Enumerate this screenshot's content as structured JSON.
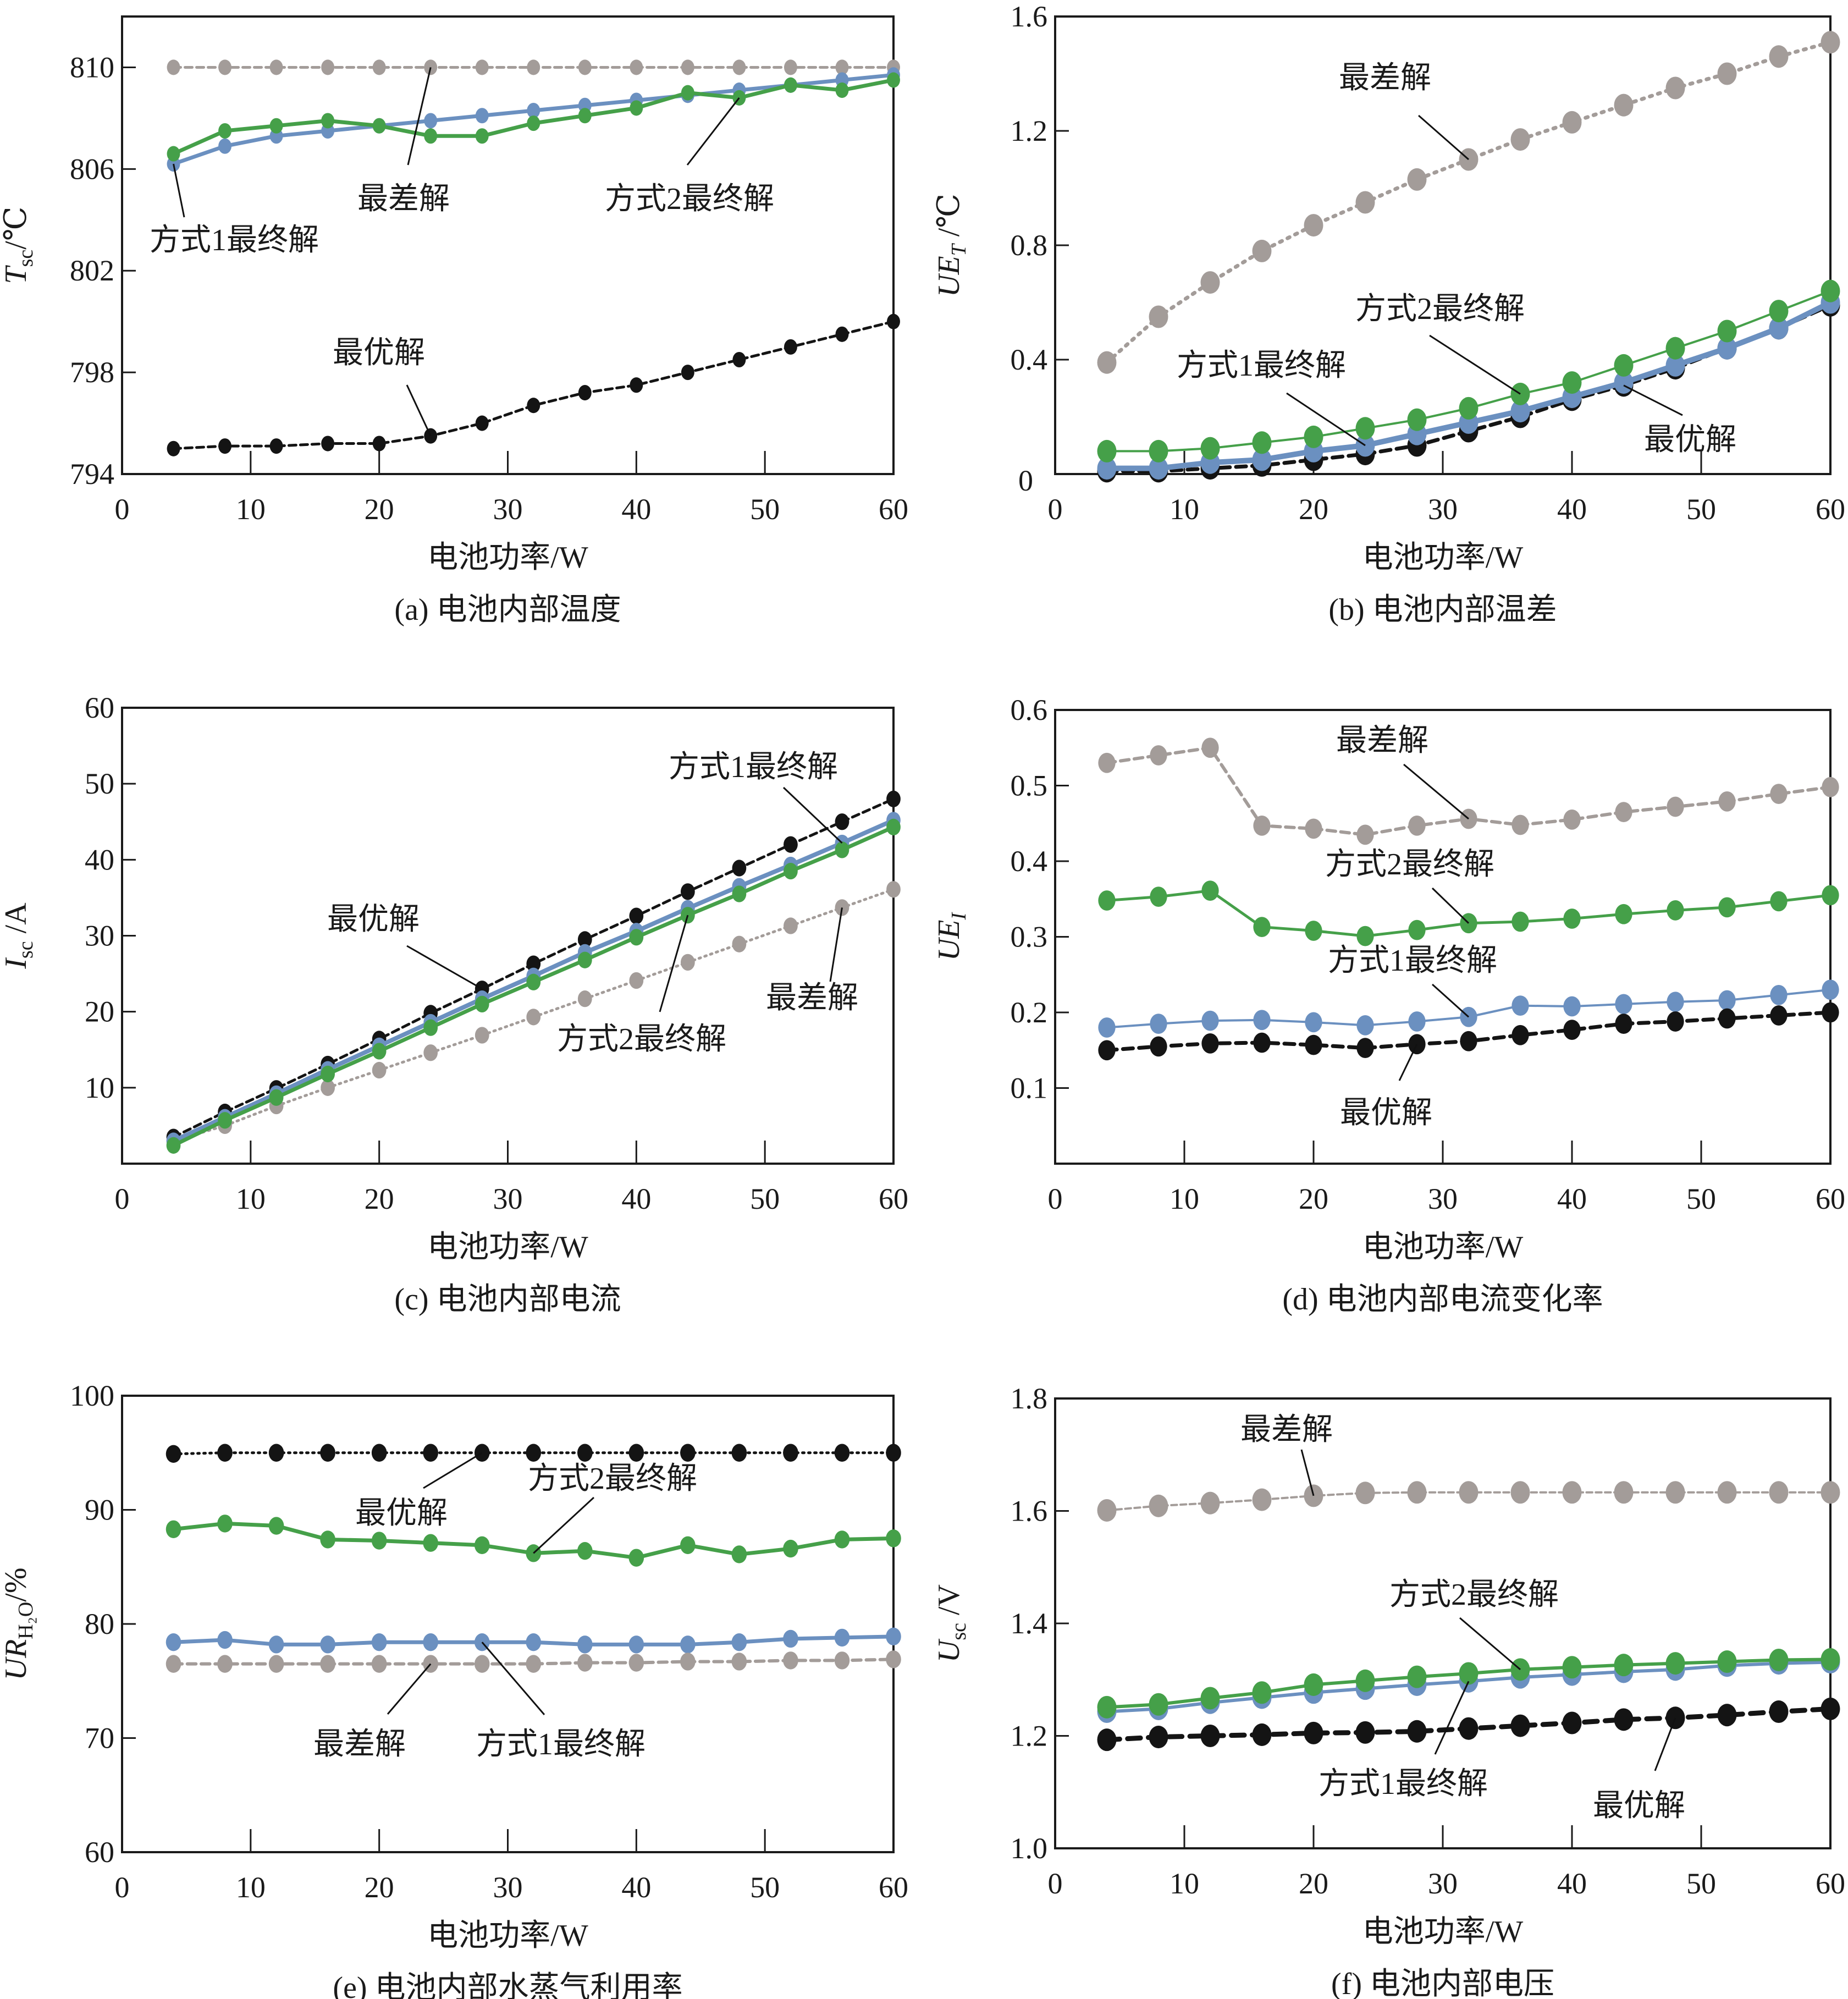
{
  "figure": {
    "x_axis_title": "电池功率/W",
    "series_names": {
      "best": "最优解",
      "worst": "最差解",
      "m1": "方式1最终解",
      "m2": "方式2最终解"
    },
    "colors": {
      "best": "#141414",
      "worst": "#a39c99",
      "m1": "#6b90c0",
      "m2": "#45a049",
      "axis": "#1a1a1a"
    }
  },
  "chart_data": [
    {
      "id": "a",
      "type": "line",
      "caption": "(a) 电池内部温度",
      "title": "",
      "xlabel": "电池功率/W",
      "ylabel": "T_sc/℃",
      "ylabel_main": "T",
      "ylabel_sub": "sc",
      "ylabel_unit": "/℃",
      "xlim": [
        0,
        60
      ],
      "ylim": [
        794,
        812
      ],
      "xticks": [
        0,
        10,
        20,
        30,
        40,
        50,
        60
      ],
      "yticks": [
        794,
        798,
        802,
        806,
        810
      ],
      "grid": false,
      "x": [
        4,
        8,
        12,
        16,
        20,
        24,
        28,
        32,
        36,
        40,
        44,
        48,
        52,
        56,
        60
      ],
      "series": [
        {
          "key": "worst",
          "name": "最差解",
          "style": "dashed",
          "values": [
            810,
            810,
            810,
            810,
            810,
            810,
            810,
            810,
            810,
            810,
            810,
            810,
            810,
            810,
            810
          ]
        },
        {
          "key": "m1",
          "name": "方式1最终解",
          "style": "solid",
          "values": [
            806.2,
            806.9,
            807.3,
            807.5,
            807.7,
            807.9,
            808.1,
            808.3,
            808.5,
            808.7,
            808.9,
            809.1,
            809.3,
            809.5,
            809.7
          ]
        },
        {
          "key": "m2",
          "name": "方式2最终解",
          "style": "solid",
          "values": [
            806.6,
            807.5,
            807.7,
            807.9,
            807.7,
            807.3,
            807.3,
            807.8,
            808.1,
            808.4,
            809.0,
            808.8,
            809.3,
            809.1,
            809.5
          ]
        },
        {
          "key": "best",
          "name": "最优解",
          "style": "dashed",
          "values": [
            795.0,
            795.1,
            795.1,
            795.2,
            795.2,
            795.5,
            796.0,
            796.7,
            797.2,
            797.5,
            798.0,
            798.5,
            799.0,
            799.5,
            800.0
          ]
        }
      ],
      "annotations": [
        {
          "key": "m1",
          "text": "方式1最终解"
        },
        {
          "key": "worst",
          "text": "最差解"
        },
        {
          "key": "m2",
          "text": "方式2最终解"
        },
        {
          "key": "best",
          "text": "最优解"
        }
      ]
    },
    {
      "id": "b",
      "type": "line",
      "caption": "(b) 电池内部温差",
      "title": "",
      "xlabel": "电池功率/W",
      "ylabel": "UE_T /℃",
      "ylabel_main": "UE",
      "ylabel_sub": "T",
      "ylabel_unit": " /℃",
      "xlim": [
        0,
        60
      ],
      "ylim": [
        0,
        1.6
      ],
      "xticks": [
        0,
        10,
        20,
        30,
        40,
        50,
        60
      ],
      "yticks": [
        0,
        0.4,
        0.8,
        1.2,
        1.6
      ],
      "ytick_labels": [
        "0",
        "0.4",
        "0.8",
        "1.2",
        "1.6"
      ],
      "grid": false,
      "x": [
        4,
        8,
        12,
        16,
        20,
        24,
        28,
        32,
        36,
        40,
        44,
        48,
        52,
        56,
        60
      ],
      "series": [
        {
          "key": "worst",
          "name": "最差解",
          "style": "dotted",
          "values": [
            0.39,
            0.55,
            0.67,
            0.78,
            0.87,
            0.95,
            1.03,
            1.1,
            1.17,
            1.23,
            1.29,
            1.35,
            1.4,
            1.46,
            1.51
          ]
        },
        {
          "key": "best",
          "name": "最优解",
          "style": "dashed",
          "values": [
            0.01,
            0.01,
            0.02,
            0.03,
            0.05,
            0.07,
            0.1,
            0.15,
            0.2,
            0.26,
            0.31,
            0.37,
            0.44,
            0.51,
            0.59
          ]
        },
        {
          "key": "m1",
          "name": "方式1最终解",
          "style": "solid",
          "values": [
            0.02,
            0.02,
            0.04,
            0.05,
            0.08,
            0.1,
            0.14,
            0.18,
            0.22,
            0.27,
            0.32,
            0.38,
            0.44,
            0.51,
            0.6
          ]
        },
        {
          "key": "m2",
          "name": "方式2最终解",
          "style": "solid",
          "values": [
            0.08,
            0.08,
            0.09,
            0.11,
            0.13,
            0.16,
            0.19,
            0.23,
            0.28,
            0.32,
            0.38,
            0.44,
            0.5,
            0.57,
            0.64
          ]
        }
      ],
      "annotations": [
        {
          "key": "worst",
          "text": "最差解"
        },
        {
          "key": "m2",
          "text": "方式2最终解"
        },
        {
          "key": "m1",
          "text": "方式1最终解"
        },
        {
          "key": "best",
          "text": "最优解"
        }
      ]
    },
    {
      "id": "c",
      "type": "line",
      "caption": "(c) 电池内部电流",
      "title": "",
      "xlabel": "电池功率/W",
      "ylabel": "I_sc /A",
      "ylabel_main": "I",
      "ylabel_sub": "sc",
      "ylabel_unit": " /A",
      "xlim": [
        0,
        60
      ],
      "ylim": [
        0,
        60
      ],
      "xticks": [
        0,
        10,
        20,
        30,
        40,
        50,
        60
      ],
      "yticks": [
        10,
        20,
        30,
        40,
        50,
        60
      ],
      "grid": false,
      "x": [
        4,
        8,
        12,
        16,
        20,
        24,
        28,
        32,
        36,
        40,
        44,
        48,
        52,
        56,
        60
      ],
      "series": [
        {
          "key": "worst",
          "name": "最差解",
          "style": "dotted",
          "values": [
            3.0,
            5.0,
            7.6,
            10.0,
            12.3,
            14.6,
            16.9,
            19.3,
            21.7,
            24.1,
            26.5,
            28.9,
            31.3,
            33.7,
            36.1
          ]
        },
        {
          "key": "best",
          "name": "最优解",
          "style": "dashed",
          "values": [
            3.5,
            6.8,
            9.9,
            13.1,
            16.4,
            19.8,
            23.0,
            26.3,
            29.5,
            32.6,
            35.8,
            38.9,
            42.0,
            45.0,
            48.0
          ]
        },
        {
          "key": "m1",
          "name": "方式1最终解",
          "style": "solid",
          "values": [
            3.0,
            6.1,
            9.2,
            12.4,
            15.5,
            18.6,
            21.7,
            24.7,
            27.8,
            30.6,
            33.6,
            36.5,
            39.3,
            42.2,
            45.2
          ]
        },
        {
          "key": "m2",
          "name": "方式2最终解",
          "style": "solid",
          "values": [
            2.4,
            5.7,
            8.7,
            11.8,
            14.8,
            17.9,
            21.0,
            23.9,
            26.8,
            29.8,
            32.7,
            35.5,
            38.5,
            41.3,
            44.3
          ]
        }
      ],
      "annotations": [
        {
          "key": "m1",
          "text": "方式1最终解"
        },
        {
          "key": "best",
          "text": "最优解"
        },
        {
          "key": "worst",
          "text": "最差解"
        },
        {
          "key": "m2",
          "text": "方式2最终解"
        }
      ]
    },
    {
      "id": "d",
      "type": "line",
      "caption": "(d) 电池内部电流变化率",
      "title": "",
      "xlabel": "电池功率/W",
      "ylabel": "UE_I",
      "ylabel_main": "UE",
      "ylabel_sub": "I",
      "ylabel_unit": "",
      "xlim": [
        0,
        60
      ],
      "ylim": [
        0,
        0.6
      ],
      "xticks": [
        0,
        10,
        20,
        30,
        40,
        50,
        60
      ],
      "yticks": [
        0.1,
        0.2,
        0.3,
        0.4,
        0.5,
        0.6
      ],
      "ytick_labels": [
        "0.1",
        "0.2",
        "0.3",
        "0.4",
        "0.5",
        "0.6"
      ],
      "grid": false,
      "x": [
        4,
        8,
        12,
        16,
        20,
        24,
        28,
        32,
        36,
        40,
        44,
        48,
        52,
        56,
        60
      ],
      "series": [
        {
          "key": "worst",
          "name": "最差解",
          "style": "dashed",
          "values": [
            0.53,
            0.54,
            0.55,
            0.447,
            0.443,
            0.435,
            0.447,
            0.456,
            0.448,
            0.455,
            0.465,
            0.472,
            0.479,
            0.489,
            0.498
          ]
        },
        {
          "key": "m2",
          "name": "方式2最终解",
          "style": "solid",
          "values": [
            0.348,
            0.353,
            0.361,
            0.313,
            0.308,
            0.301,
            0.309,
            0.318,
            0.32,
            0.324,
            0.33,
            0.335,
            0.339,
            0.347,
            0.355
          ]
        },
        {
          "key": "m1",
          "name": "方式1最终解",
          "style": "solid",
          "values": [
            0.18,
            0.185,
            0.189,
            0.19,
            0.187,
            0.183,
            0.188,
            0.194,
            0.209,
            0.208,
            0.211,
            0.214,
            0.216,
            0.223,
            0.23
          ]
        },
        {
          "key": "best",
          "name": "最优解",
          "style": "dashed",
          "values": [
            0.15,
            0.155,
            0.159,
            0.16,
            0.157,
            0.153,
            0.158,
            0.162,
            0.17,
            0.177,
            0.185,
            0.188,
            0.192,
            0.196,
            0.2
          ]
        }
      ],
      "annotations": [
        {
          "key": "worst",
          "text": "最差解"
        },
        {
          "key": "m2",
          "text": "方式2最终解"
        },
        {
          "key": "m1",
          "text": "方式1最终解"
        },
        {
          "key": "best",
          "text": "最优解"
        }
      ]
    },
    {
      "id": "e",
      "type": "line",
      "caption": "(e) 电池内部水蒸气利用率",
      "title": "",
      "xlabel": "电池功率/W",
      "ylabel": "UR_H2O/%",
      "ylabel_main": "UR",
      "ylabel_sub": "H₂O",
      "ylabel_unit": "/%",
      "xlim": [
        0,
        60
      ],
      "ylim": [
        60,
        100
      ],
      "xticks": [
        0,
        10,
        20,
        30,
        40,
        50,
        60
      ],
      "yticks": [
        60,
        70,
        80,
        90,
        100
      ],
      "grid": false,
      "x": [
        4,
        8,
        12,
        16,
        20,
        24,
        28,
        32,
        36,
        40,
        44,
        48,
        52,
        56,
        60
      ],
      "series": [
        {
          "key": "best",
          "name": "最优解",
          "style": "dotted",
          "values": [
            94.9,
            95.0,
            95.0,
            95.0,
            95.0,
            95.0,
            95.0,
            95.0,
            95.0,
            95.0,
            95.0,
            95.0,
            95.0,
            95.0,
            95.0
          ]
        },
        {
          "key": "m2",
          "name": "方式2最终解",
          "style": "solid",
          "values": [
            88.3,
            88.8,
            88.6,
            87.4,
            87.3,
            87.1,
            86.9,
            86.2,
            86.4,
            85.8,
            86.9,
            86.1,
            86.6,
            87.4,
            87.5
          ]
        },
        {
          "key": "m1",
          "name": "方式1最终解",
          "style": "solid",
          "values": [
            78.4,
            78.6,
            78.2,
            78.2,
            78.4,
            78.4,
            78.4,
            78.4,
            78.2,
            78.2,
            78.2,
            78.4,
            78.7,
            78.8,
            78.9
          ]
        },
        {
          "key": "worst",
          "name": "最差解",
          "style": "dashed",
          "values": [
            76.5,
            76.5,
            76.5,
            76.5,
            76.5,
            76.5,
            76.5,
            76.5,
            76.6,
            76.6,
            76.7,
            76.7,
            76.8,
            76.8,
            76.9
          ]
        }
      ],
      "annotations": [
        {
          "key": "best",
          "text": "最优解"
        },
        {
          "key": "m2",
          "text": "方式2最终解"
        },
        {
          "key": "worst",
          "text": "最差解"
        },
        {
          "key": "m1",
          "text": "方式1最终解"
        }
      ]
    },
    {
      "id": "f",
      "type": "line",
      "caption": "(f) 电池内部电压",
      "title": "",
      "xlabel": "电池功率/W",
      "ylabel": "U_sc /V",
      "ylabel_main": "U",
      "ylabel_sub": "sc",
      "ylabel_unit": " /V",
      "xlim": [
        0,
        60
      ],
      "ylim": [
        1.0,
        1.8
      ],
      "xticks": [
        0,
        10,
        20,
        30,
        40,
        50,
        60
      ],
      "yticks": [
        1.0,
        1.2,
        1.4,
        1.6,
        1.8
      ],
      "ytick_labels": [
        "1.0",
        "1.2",
        "1.4",
        "1.6",
        "1.8"
      ],
      "grid": false,
      "x": [
        4,
        8,
        12,
        16,
        20,
        24,
        28,
        32,
        36,
        40,
        44,
        48,
        52,
        56,
        60
      ],
      "series": [
        {
          "key": "worst",
          "name": "最差解",
          "style": "dashed",
          "values": [
            1.601,
            1.609,
            1.614,
            1.62,
            1.627,
            1.632,
            1.633,
            1.633,
            1.633,
            1.633,
            1.633,
            1.633,
            1.633,
            1.633,
            1.633
          ]
        },
        {
          "key": "m1",
          "name": "方式1最终解",
          "style": "solid",
          "values": [
            1.243,
            1.248,
            1.259,
            1.268,
            1.277,
            1.284,
            1.291,
            1.297,
            1.304,
            1.309,
            1.314,
            1.318,
            1.325,
            1.329,
            1.331
          ]
        },
        {
          "key": "m2",
          "name": "方式2最终解",
          "style": "solid",
          "values": [
            1.251,
            1.256,
            1.267,
            1.277,
            1.291,
            1.298,
            1.305,
            1.311,
            1.318,
            1.322,
            1.326,
            1.329,
            1.332,
            1.335,
            1.336
          ]
        },
        {
          "key": "best",
          "name": "最优解",
          "style": "dashed",
          "values": [
            1.193,
            1.198,
            1.2,
            1.202,
            1.205,
            1.206,
            1.208,
            1.213,
            1.218,
            1.223,
            1.229,
            1.232,
            1.237,
            1.243,
            1.248
          ]
        }
      ],
      "annotations": [
        {
          "key": "worst",
          "text": "最差解"
        },
        {
          "key": "m2",
          "text": "方式2最终解"
        },
        {
          "key": "m1",
          "text": "方式1最终解"
        },
        {
          "key": "best",
          "text": "最优解"
        }
      ]
    }
  ]
}
